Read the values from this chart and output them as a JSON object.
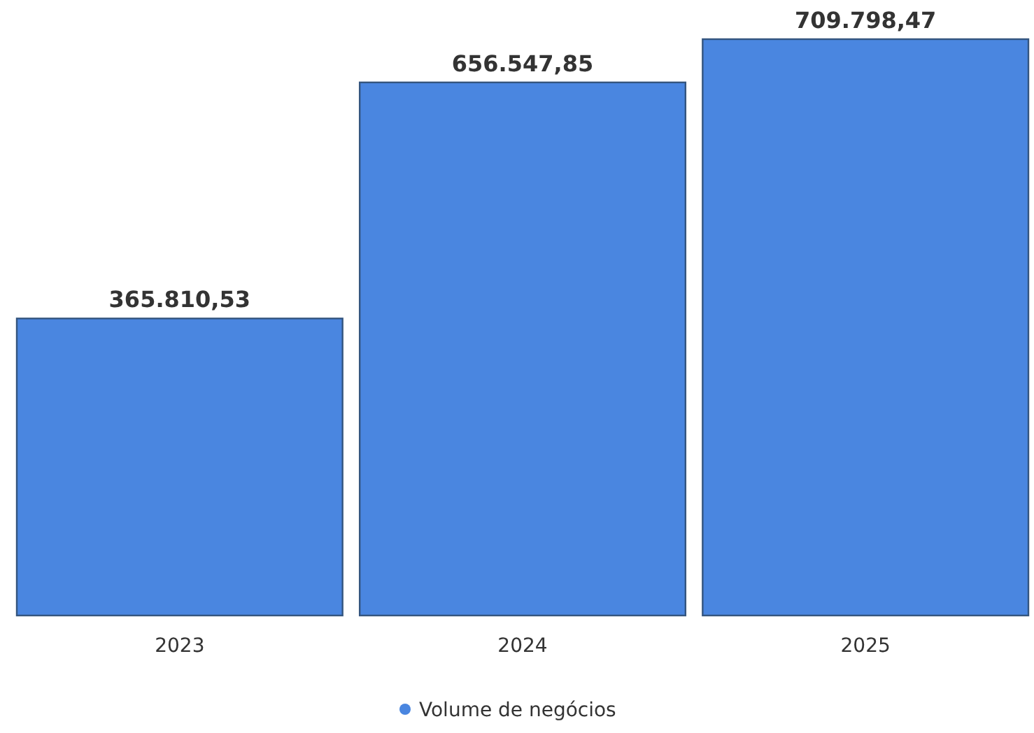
{
  "chart_data": {
    "type": "bar",
    "categories": [
      "2023",
      "2024",
      "2025"
    ],
    "series": [
      {
        "name": "Volume de negócios",
        "color": "#4a86e0",
        "values": [
          365810.53,
          656547.85,
          709798.47
        ],
        "value_labels": [
          "365.810,53",
          "656.547,85",
          "709.798,47"
        ]
      }
    ],
    "legend": "bottom"
  }
}
